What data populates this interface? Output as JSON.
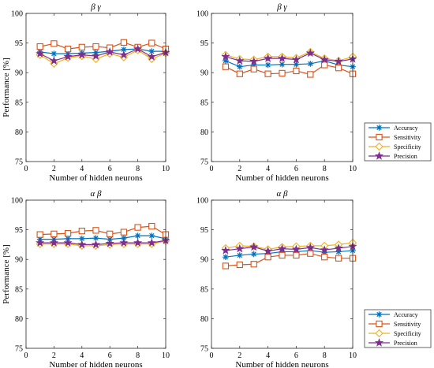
{
  "colors": {
    "Accuracy": "#0072BD",
    "Sensitivity": "#D95319",
    "Specificity": "#EDB120",
    "Precision": "#7E2F8E"
  },
  "markers": {
    "Accuracy": "asterisk",
    "Sensitivity": "square",
    "Specificity": "diamond",
    "Precision": "star"
  },
  "chart_data": [
    {
      "type": "line",
      "title": "β γ",
      "xlabel": "Number of hidden neurons",
      "ylabel": "Performance [%]",
      "xlim": [
        0,
        10
      ],
      "ylim": [
        75,
        100
      ],
      "xticks": [
        0,
        2,
        4,
        6,
        8,
        10
      ],
      "yticks": [
        75,
        80,
        85,
        90,
        95,
        100
      ],
      "x": [
        1,
        2,
        3,
        4,
        5,
        6,
        7,
        8,
        9,
        10
      ],
      "legend": false,
      "series": [
        {
          "name": "Accuracy",
          "values": [
            93.5,
            93.2,
            93.2,
            93.3,
            93.4,
            93.6,
            93.9,
            94.0,
            93.6,
            93.6
          ]
        },
        {
          "name": "Sensitivity",
          "values": [
            94.4,
            94.9,
            94.0,
            94.3,
            94.4,
            94.2,
            95.1,
            94.3,
            95.0,
            94.0
          ]
        },
        {
          "name": "Specificity",
          "values": [
            93.0,
            91.5,
            92.5,
            92.8,
            92.3,
            93.2,
            92.6,
            93.8,
            92.3,
            93.3
          ]
        },
        {
          "name": "Precision",
          "values": [
            93.2,
            92.0,
            92.7,
            93.0,
            92.8,
            93.5,
            93.0,
            94.0,
            92.7,
            93.4
          ]
        }
      ]
    },
    {
      "type": "line",
      "title": "β γ",
      "xlabel": "Number of hidden neurons",
      "ylabel": "",
      "xlim": [
        0,
        10
      ],
      "ylim": [
        75,
        100
      ],
      "xticks": [
        0,
        2,
        4,
        6,
        8,
        10
      ],
      "yticks": [
        75,
        80,
        85,
        90,
        95,
        100
      ],
      "x": [
        1,
        2,
        3,
        4,
        5,
        6,
        7,
        8,
        9,
        10
      ],
      "legend": true,
      "legend_position": "right",
      "series": [
        {
          "name": "Accuracy",
          "values": [
            92.0,
            91.0,
            91.3,
            91.3,
            91.4,
            91.4,
            91.5,
            92.0,
            91.3,
            91.0
          ]
        },
        {
          "name": "Sensitivity",
          "values": [
            91.0,
            89.8,
            90.6,
            89.8,
            89.9,
            90.3,
            89.7,
            91.3,
            90.8,
            89.8
          ]
        },
        {
          "name": "Specificity",
          "values": [
            93.0,
            92.3,
            92.2,
            92.7,
            92.7,
            92.5,
            93.5,
            92.4,
            92.0,
            92.7
          ]
        },
        {
          "name": "Precision",
          "values": [
            92.7,
            92.0,
            91.9,
            92.4,
            92.4,
            92.2,
            93.3,
            92.2,
            91.9,
            92.3
          ]
        }
      ]
    },
    {
      "type": "line",
      "title": "α β",
      "xlabel": "Number of hidden neurons",
      "ylabel": "Performance [%]",
      "xlim": [
        0,
        10
      ],
      "ylim": [
        75,
        100
      ],
      "xticks": [
        0,
        2,
        4,
        6,
        8,
        10
      ],
      "yticks": [
        75,
        80,
        85,
        90,
        95,
        100
      ],
      "x": [
        1,
        2,
        3,
        4,
        5,
        6,
        7,
        8,
        9,
        10
      ],
      "legend": false,
      "series": [
        {
          "name": "Accuracy",
          "values": [
            93.4,
            93.4,
            93.5,
            93.5,
            93.6,
            93.4,
            93.6,
            94.0,
            94.0,
            93.5
          ]
        },
        {
          "name": "Sensitivity",
          "values": [
            94.2,
            94.3,
            94.4,
            94.8,
            94.9,
            94.3,
            94.6,
            95.4,
            95.6,
            94.2
          ]
        },
        {
          "name": "Specificity",
          "values": [
            92.6,
            92.6,
            92.6,
            92.3,
            92.3,
            92.5,
            92.6,
            92.6,
            92.6,
            93.1
          ]
        },
        {
          "name": "Precision",
          "values": [
            92.8,
            92.8,
            92.8,
            92.5,
            92.5,
            92.7,
            92.8,
            92.8,
            92.8,
            93.2
          ]
        }
      ]
    },
    {
      "type": "line",
      "title": "α β",
      "xlabel": "Number of hidden neurons",
      "ylabel": "",
      "xlim": [
        0,
        10
      ],
      "ylim": [
        75,
        100
      ],
      "xticks": [
        0,
        2,
        4,
        6,
        8,
        10
      ],
      "yticks": [
        75,
        80,
        85,
        90,
        95,
        100
      ],
      "x": [
        1,
        2,
        3,
        4,
        5,
        6,
        7,
        8,
        9,
        10
      ],
      "legend": true,
      "legend_position": "right",
      "series": [
        {
          "name": "Accuracy",
          "values": [
            90.4,
            90.7,
            90.9,
            91.0,
            91.3,
            91.3,
            91.5,
            91.2,
            91.3,
            91.5
          ]
        },
        {
          "name": "Sensitivity",
          "values": [
            88.9,
            89.1,
            89.2,
            90.4,
            90.7,
            90.7,
            91.0,
            90.4,
            90.2,
            90.2
          ]
        },
        {
          "name": "Specificity",
          "values": [
            91.9,
            92.3,
            92.2,
            91.7,
            92.1,
            92.2,
            92.3,
            92.3,
            92.5,
            92.8
          ]
        },
        {
          "name": "Precision",
          "values": [
            91.5,
            91.8,
            92.1,
            91.4,
            91.8,
            91.7,
            92.0,
            91.6,
            91.9,
            92.2
          ]
        }
      ]
    }
  ]
}
